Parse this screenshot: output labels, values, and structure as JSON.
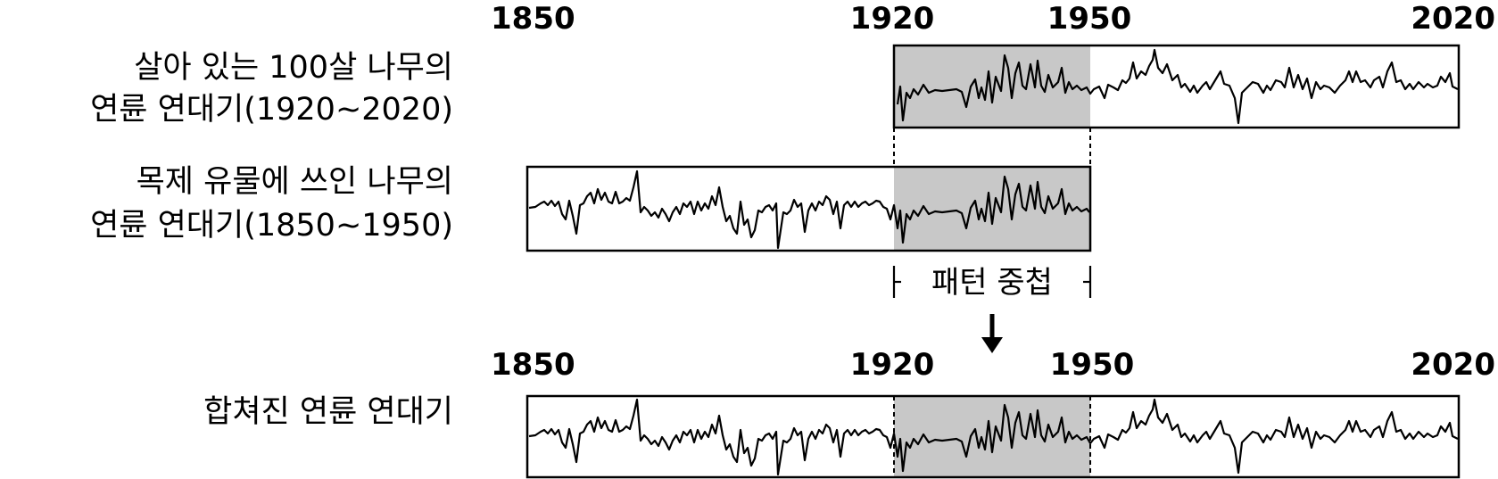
{
  "top": {
    "label_line1": "살아 있는 100살 나무의",
    "label_line2": "연륜 연대기(1920~2020)",
    "years": [
      "1850",
      "1920",
      "1950",
      "2020"
    ]
  },
  "middle": {
    "label_line1": "목제 유물에 쓰인 나무의",
    "label_line2": "연륜 연대기(1850~1950)"
  },
  "overlap_text": "패턴 중첩",
  "bottom": {
    "label": "합쳐진 연륜 연대기",
    "years": [
      "1850",
      "1920",
      "1950",
      "2020"
    ]
  },
  "colors": {
    "overlap_fill": "#c8c8c8",
    "line": "#000000"
  },
  "icons": {
    "arrow": "down-arrow-icon"
  }
}
